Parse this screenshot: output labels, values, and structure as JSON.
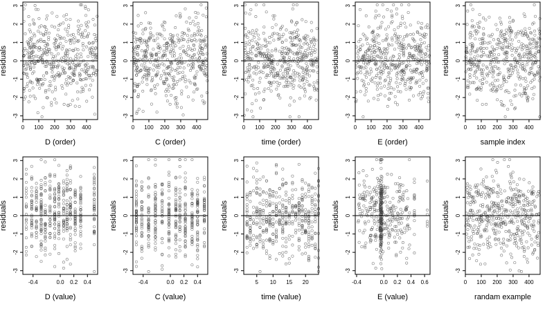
{
  "colors": {
    "points": "#444444",
    "frame": "#000000",
    "zero_line": "#000000",
    "background": "#ffffff"
  },
  "chart_data": [
    {
      "type": "scatter",
      "xlabel": "D (order)",
      "ylabel": "residuals",
      "xlim": [
        0,
        470
      ],
      "ylim": [
        -3.2,
        3.2
      ],
      "xticks": [
        0,
        100,
        200,
        300,
        400
      ],
      "xtick_labels": [
        "0",
        "100",
        "200",
        "300",
        "400"
      ],
      "yticks": [
        -3,
        -2,
        -1,
        0,
        1,
        2,
        3
      ],
      "hline": 0,
      "pattern": "uniform",
      "n": 470,
      "seed": 11
    },
    {
      "type": "scatter",
      "xlabel": "C (order)",
      "ylabel": "residuals",
      "xlim": [
        0,
        470
      ],
      "ylim": [
        -3.2,
        3.2
      ],
      "xticks": [
        0,
        100,
        200,
        300,
        400
      ],
      "xtick_labels": [
        "0",
        "100",
        "200",
        "300",
        "400"
      ],
      "yticks": [
        -3,
        -2,
        -1,
        0,
        1,
        2,
        3
      ],
      "hline": 0,
      "pattern": "uniform",
      "n": 470,
      "seed": 23
    },
    {
      "type": "scatter",
      "xlabel": "time (order)",
      "ylabel": "residuals",
      "xlim": [
        0,
        470
      ],
      "ylim": [
        -3.2,
        3.2
      ],
      "xticks": [
        0,
        100,
        200,
        300,
        400
      ],
      "xtick_labels": [
        "0",
        "100",
        "200",
        "300",
        "400"
      ],
      "yticks": [
        -3,
        -2,
        -1,
        0,
        1,
        2,
        3
      ],
      "hline": 0,
      "pattern": "uniform",
      "n": 470,
      "seed": 37
    },
    {
      "type": "scatter",
      "xlabel": "E (order)",
      "ylabel": "residuals",
      "xlim": [
        0,
        470
      ],
      "ylim": [
        -3.2,
        3.2
      ],
      "xticks": [
        0,
        100,
        200,
        300,
        400
      ],
      "xtick_labels": [
        "0",
        "100",
        "200",
        "300",
        "400"
      ],
      "yticks": [
        -3,
        -2,
        -1,
        0,
        1,
        2,
        3
      ],
      "hline": 0,
      "pattern": "uniform",
      "n": 470,
      "seed": 41
    },
    {
      "type": "scatter",
      "xlabel": "sample index",
      "ylabel": "residuals",
      "xlim": [
        0,
        470
      ],
      "ylim": [
        -3.2,
        3.2
      ],
      "xticks": [
        0,
        100,
        200,
        300,
        400
      ],
      "xtick_labels": [
        "0",
        "100",
        "200",
        "300",
        "400"
      ],
      "yticks": [
        -3,
        -2,
        -1,
        0,
        1,
        2,
        3
      ],
      "hline": 0,
      "pattern": "uniform",
      "n": 470,
      "seed": 53
    },
    {
      "type": "scatter",
      "xlabel": "D (value)",
      "ylabel": "residuals",
      "xlim": [
        -0.55,
        0.55
      ],
      "ylim": [
        -3.2,
        3.2
      ],
      "xticks": [
        -0.4,
        0,
        0.2,
        0.4
      ],
      "xtick_labels": [
        "-0.4",
        "0.0",
        "0.2",
        "0.4"
      ],
      "yticks": [
        -3,
        -2,
        -1,
        0,
        1,
        2,
        3
      ],
      "hline": 0,
      "pattern": "columns",
      "columns": [
        -0.5,
        -0.42,
        -0.35,
        -0.28,
        -0.22,
        -0.15,
        -0.08,
        -0.02,
        0.05,
        0.1,
        0.15,
        0.22,
        0.3,
        0.5
      ],
      "n": 470,
      "seed": 61
    },
    {
      "type": "scatter",
      "xlabel": "C (value)",
      "ylabel": "residuals",
      "xlim": [
        -0.55,
        0.55
      ],
      "ylim": [
        -3.2,
        3.2
      ],
      "xticks": [
        -0.4,
        0,
        0.2,
        0.4
      ],
      "xtick_labels": [
        "-0.4",
        "0.0",
        "0.2",
        "0.4"
      ],
      "yticks": [
        -3,
        -2,
        -1,
        0,
        1,
        2,
        3
      ],
      "hline": 0,
      "pattern": "columns",
      "columns": [
        -0.5,
        -0.42,
        -0.32,
        -0.22,
        -0.12,
        -0.02,
        0.08,
        0.14,
        0.22,
        0.32,
        0.4,
        0.5
      ],
      "n": 470,
      "seed": 71
    },
    {
      "type": "scatter",
      "xlabel": "time (value)",
      "ylabel": "residuals",
      "xlim": [
        1,
        24
      ],
      "ylim": [
        -3.2,
        3.2
      ],
      "xticks": [
        5,
        10,
        15,
        20
      ],
      "xtick_labels": [
        "5",
        "10",
        "15",
        "20"
      ],
      "yticks": [
        -3,
        -2,
        -1,
        0,
        1,
        2,
        3
      ],
      "hline": 0,
      "pattern": "columns",
      "columns": [
        2,
        3,
        4,
        5,
        6,
        7,
        8,
        9,
        10,
        11,
        12,
        13,
        14,
        15,
        16,
        17,
        18,
        19,
        20,
        21,
        22,
        23,
        24
      ],
      "n": 470,
      "seed": 83
    },
    {
      "type": "scatter",
      "xlabel": "E (value)",
      "ylabel": "residuals",
      "xlim": [
        -0.42,
        0.68
      ],
      "ylim": [
        -3.2,
        3.2
      ],
      "xticks": [
        -0.4,
        0,
        0.2,
        0.4,
        0.6
      ],
      "xtick_labels": [
        "-0.4",
        "0.0",
        "0.2",
        "0.4",
        "0.6"
      ],
      "yticks": [
        -3,
        -2,
        -1,
        0,
        1,
        2,
        3
      ],
      "hline": 0,
      "pattern": "cluster",
      "cluster_center": -0.04,
      "n": 470,
      "seed": 97
    },
    {
      "type": "scatter",
      "xlabel": "randam example",
      "ylabel": "residuals",
      "xlim": [
        0,
        470
      ],
      "ylim": [
        -3.2,
        3.2
      ],
      "xticks": [
        0,
        100,
        200,
        300,
        400
      ],
      "xtick_labels": [
        "0",
        "100",
        "200",
        "300",
        "400"
      ],
      "yticks": [
        -3,
        -2,
        -1,
        0,
        1,
        2,
        3
      ],
      "hline": 0,
      "pattern": "uniform",
      "n": 470,
      "seed": 101
    }
  ]
}
